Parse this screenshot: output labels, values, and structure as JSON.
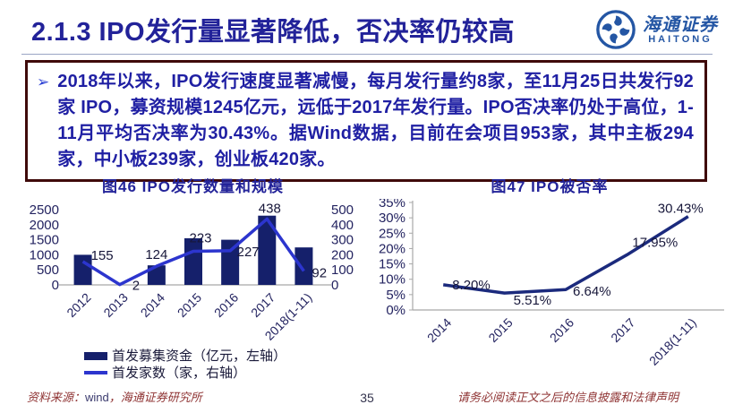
{
  "header": {
    "title": "2.1.3 IPO发行量显著降低，否决率仍较高",
    "logo": {
      "name_cn": "海通证券",
      "name_en": "HAITONG"
    }
  },
  "callout": {
    "bullet": "➢",
    "text": "2018年以来，IPO发行速度显著减慢，每月发行量约8家，至11月25日共发行92家 IPO，募资规模1245亿元，远低于2017年发行量。IPO否决率仍处于高位，1-11月平均否决率为30.43%。据Wind数据，目前在会项目953家，其中主板294家，中小板239家，创业板420家。"
  },
  "chart_data": [
    {
      "id": "fig46",
      "type": "bar+line",
      "title": "图46  IPO发行数量和规模",
      "categories": [
        "2012",
        "2013",
        "2014",
        "2015",
        "2016",
        "2017",
        "2018(1-11)"
      ],
      "series": [
        {
          "name": "首发募集资金（亿元，左轴）",
          "type": "bar",
          "axis": "left",
          "color": "#15206b",
          "values": [
            1000,
            0,
            650,
            1550,
            1500,
            2300,
            1245
          ]
        },
        {
          "name": "首发家数（家，右轴）",
          "type": "line",
          "axis": "right",
          "color": "#2c35ce",
          "values": [
            155,
            2,
            124,
            223,
            227,
            438,
            92
          ],
          "labels": [
            "155",
            "2",
            "124",
            "223",
            "227",
            "438",
            "92"
          ],
          "label_offsets": [
            [
              9,
              -2,
              "start"
            ],
            [
              14,
              6,
              "start"
            ],
            [
              0,
              -8,
              "middle"
            ],
            [
              8,
              -10,
              "middle"
            ],
            [
              20,
              6,
              "middle"
            ],
            [
              3,
              -7,
              "middle"
            ],
            [
              9,
              7,
              "start"
            ]
          ]
        }
      ],
      "left_axis": {
        "min": 0,
        "max": 2500,
        "step": 500,
        "ticks": [
          "0",
          "500",
          "1000",
          "1500",
          "2000",
          "2500"
        ]
      },
      "right_axis": {
        "min": 0,
        "max": 500,
        "step": 100,
        "ticks": [
          "0",
          "100",
          "200",
          "300",
          "400",
          "500"
        ]
      },
      "grid": false,
      "legend_position": "bottom"
    },
    {
      "id": "fig47",
      "type": "line",
      "title": "图47  IPO被否率",
      "categories": [
        "2014",
        "2015",
        "2016",
        "2017",
        "2018(1-11)"
      ],
      "values": [
        8.2,
        5.51,
        6.64,
        17.95,
        30.43
      ],
      "labels": [
        "8.20%",
        "5.51%",
        "6.64%",
        "17.95%",
        "30.43%"
      ],
      "label_offsets": [
        [
          10,
          5,
          "start"
        ],
        [
          10,
          13,
          "start"
        ],
        [
          8,
          7,
          "start"
        ],
        [
          6,
          -9,
          "start"
        ],
        [
          -34,
          -4,
          "start"
        ]
      ],
      "color": "#1b2a7d",
      "y_axis": {
        "min": 0,
        "max": 35,
        "step": 5,
        "ticks": [
          "0%",
          "5%",
          "10%",
          "15%",
          "20%",
          "25%",
          "30%",
          "35%"
        ]
      },
      "grid": false,
      "legend_position": "none"
    }
  ],
  "footer": {
    "source_prefix": "资料来源：",
    "source_wind": "wind",
    "source_suffix": "，海通证券研究所",
    "page_number": "35",
    "disclaimer": "请务必阅读正文之后的信息披露和法律声明"
  },
  "colors": {
    "accent_blue": "#222299",
    "text_blue": "#1f1fa3",
    "box_border": "#3f0a0a",
    "bar_navy": "#15206b",
    "line_blue": "#2c35ce",
    "line_navy": "#1b2a7d",
    "axis_gray": "#a8a8a8",
    "tick_text": "#232360",
    "label_text": "#17173a",
    "footer_red": "#8f3333",
    "logo_blue": "#2456a4"
  }
}
